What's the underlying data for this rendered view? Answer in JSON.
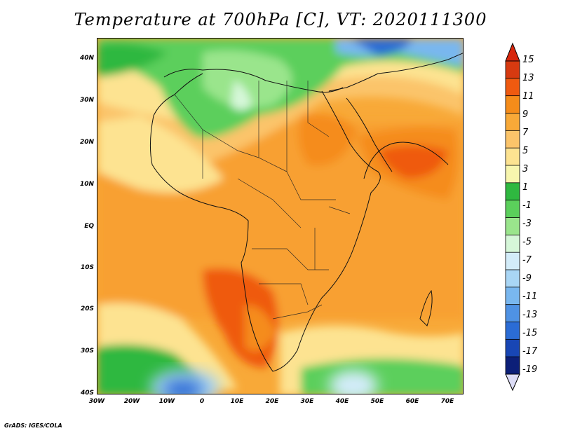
{
  "title": "Temperature at 700hPa [C], VT: 2020111300",
  "credit": "GrADS: IGES/COLA",
  "map": {
    "lat_labels": [
      "40N",
      "30N",
      "20N",
      "10N",
      "EQ",
      "10S",
      "20S",
      "30S",
      "40S"
    ],
    "lon_labels": [
      "30W",
      "20W",
      "10W",
      "0",
      "10E",
      "20E",
      "30E",
      "40E",
      "50E",
      "60E",
      "70E"
    ]
  },
  "colorbar": {
    "labels": [
      "15",
      "13",
      "11",
      "9",
      "7",
      "5",
      "3",
      "1",
      "-1",
      "-3",
      "-5",
      "-7",
      "-9",
      "-11",
      "-13",
      "-15",
      "-17",
      "-19"
    ],
    "colors": [
      "#d73a10",
      "#ef5a10",
      "#f58c1a",
      "#f8a938",
      "#fbc46a",
      "#fde391",
      "#f8f6ae",
      "#2fb840",
      "#5bcf5b",
      "#9ae58c",
      "#d6f7d9",
      "#d3ecf9",
      "#a9d6f5",
      "#79b7ef",
      "#4f92e4",
      "#2b6cd5",
      "#1846b4",
      "#0c1f78"
    ],
    "top_arrow_color": "#d7260c",
    "bottom_arrow_color": "#dcdcf6"
  }
}
